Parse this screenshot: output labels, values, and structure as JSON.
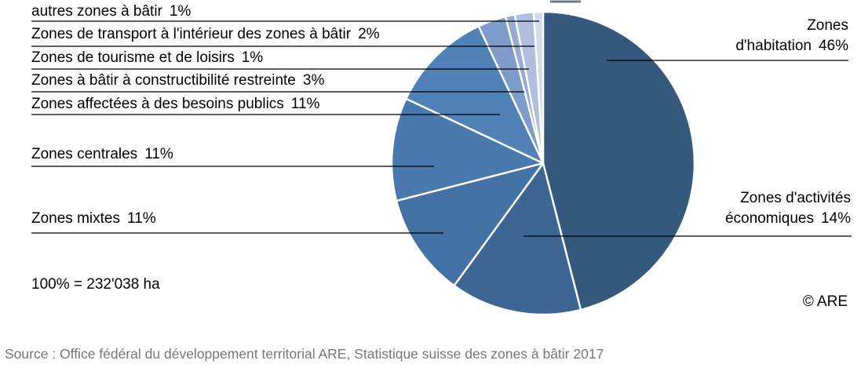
{
  "chart_data": {
    "type": "pie",
    "start": "top",
    "direction": "clockwise",
    "legend_position": "callout-labels",
    "total_label": "100% = 232'038 ha",
    "copyright": "© ARE",
    "slices": [
      {
        "id": "habitation",
        "label": "Zones d'habitation",
        "pct": 46,
        "pct_label": "46%",
        "color": "#35587D"
      },
      {
        "id": "activites-economiques",
        "label": "Zones d'activités économiques",
        "pct": 14,
        "pct_label": "14%",
        "color": "#3E6694"
      },
      {
        "id": "mixtes",
        "label": "Zones mixtes",
        "pct": 11,
        "pct_label": "11%",
        "color": "#4472A4"
      },
      {
        "id": "centrales",
        "label": "Zones centrales",
        "pct": 11,
        "pct_label": "11%",
        "color": "#4A79AD"
      },
      {
        "id": "besoins-publics",
        "label": "Zones affectées à des besoins publics",
        "pct": 11,
        "pct_label": "11%",
        "color": "#5081B7"
      },
      {
        "id": "constructibilite-restreinte",
        "label": "Zones à bâtir à constructibilité restreinte",
        "pct": 3,
        "pct_label": "3%",
        "color": "#7D9CC9"
      },
      {
        "id": "tourisme-loisirs",
        "label": "Zones de tourisme et de loisirs",
        "pct": 1,
        "pct_label": "1%",
        "color": "#98ACD3"
      },
      {
        "id": "transport",
        "label": "Zones de transport à l'intérieur des zones à bâtir",
        "pct": 2,
        "pct_label": "2%",
        "color": "#B1BFDE"
      },
      {
        "id": "autres",
        "label": "autres zones à bâtir",
        "pct": 1,
        "pct_label": "1%",
        "color": "#D6DBEA"
      }
    ]
  },
  "source": {
    "text": "Source : Office fédéral du développement territorial ARE, Statistique suisse des zones à bâtir 2017",
    "color": "#767676"
  }
}
